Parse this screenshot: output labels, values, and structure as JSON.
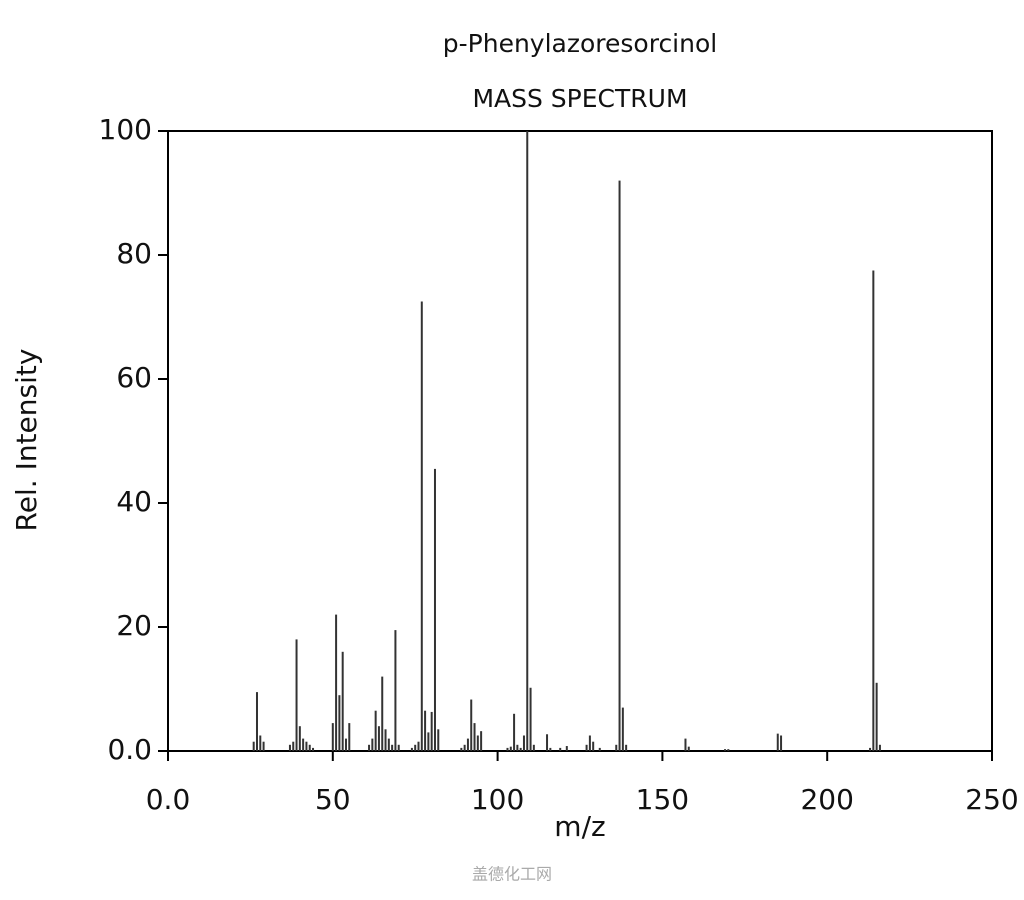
{
  "chart_data": {
    "type": "bar",
    "title": "p-Phenylazoresorcinol",
    "subtitle": "MASS SPECTRUM",
    "xlabel": "m/z",
    "ylabel": "Rel. Intensity",
    "watermark": "盖德化工网",
    "color": "#333333",
    "x": [
      26,
      27,
      28,
      29,
      37,
      38,
      39,
      40,
      41,
      42,
      43,
      44,
      50,
      51,
      52,
      53,
      54,
      55,
      61,
      62,
      63,
      64,
      65,
      66,
      67,
      68,
      69,
      70,
      74,
      75,
      76,
      77,
      78,
      79,
      80,
      81,
      82,
      89,
      90,
      91,
      92,
      93,
      94,
      95,
      103,
      104,
      105,
      106,
      107,
      108,
      109,
      110,
      111,
      115,
      116,
      119,
      121,
      127,
      128,
      129,
      131,
      136,
      137,
      138,
      139,
      157,
      158,
      169,
      170,
      185,
      186,
      213,
      214,
      215,
      216
    ],
    "values": [
      1.5,
      9.5,
      2.5,
      1.5,
      1,
      1.5,
      18,
      4,
      2,
      1.5,
      1,
      0.5,
      4.5,
      22,
      9,
      16,
      2,
      4.5,
      1,
      2,
      6.5,
      4,
      12,
      3.5,
      2,
      1,
      19.5,
      1,
      0.5,
      1,
      1.5,
      72.5,
      6.5,
      3,
      6.3,
      45.5,
      3.5,
      0.5,
      1,
      2,
      8.3,
      4.5,
      2.5,
      3.2,
      0.5,
      0.7,
      6,
      1,
      0.5,
      2.5,
      100,
      10.2,
      1,
      2.7,
      0.5,
      0.5,
      0.8,
      1,
      2.5,
      1.5,
      0.5,
      1,
      92,
      7,
      1,
      2,
      0.7,
      0.3,
      0.3,
      2.8,
      2.5,
      0.5,
      77.5,
      11,
      1
    ],
    "xlim": [
      0,
      250
    ],
    "xticks": [
      {
        "value": 0,
        "label": "0.0"
      },
      50,
      100,
      150,
      200,
      250
    ],
    "ylim": [
      0,
      100
    ],
    "yticks": [
      {
        "value": 0,
        "label": "0.0"
      },
      20,
      40,
      60,
      80,
      100
    ]
  }
}
